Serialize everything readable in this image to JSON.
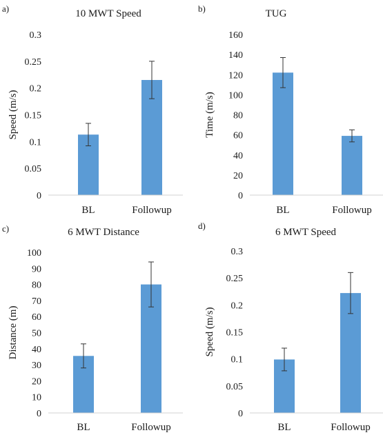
{
  "chart_data": [
    {
      "type": "bar",
      "panel_label": "a)",
      "title": "10 MWT Speed",
      "ylabel": "Speed (m/s)",
      "xlabel": "",
      "categories": [
        "BL",
        "Followup"
      ],
      "values": [
        0.113,
        0.215
      ],
      "errors": [
        0.021,
        0.035
      ],
      "ylim": [
        0,
        0.3
      ],
      "yticks": [
        "0",
        "0.05",
        "0.1",
        "0.15",
        "0.2",
        "0.25",
        "0.3"
      ],
      "tick_values": [
        0,
        0.05,
        0.1,
        0.15,
        0.2,
        0.25,
        0.3
      ],
      "bar_color": "#5b9bd5",
      "grid": false,
      "legend": "none"
    },
    {
      "type": "bar",
      "panel_label": "b)",
      "title": "TUG",
      "ylabel": "Time (m/s)",
      "xlabel": "",
      "categories": [
        "BL",
        "Followup"
      ],
      "values": [
        122,
        59
      ],
      "errors": [
        15,
        6
      ],
      "ylim": [
        0,
        160
      ],
      "yticks": [
        "0",
        "20",
        "40",
        "60",
        "80",
        "100",
        "120",
        "140",
        "160"
      ],
      "tick_values": [
        0,
        20,
        40,
        60,
        80,
        100,
        120,
        140,
        160
      ],
      "bar_color": "#5b9bd5",
      "grid": false,
      "legend": "none"
    },
    {
      "type": "bar",
      "panel_label": "c)",
      "title": "6 MWT Distance",
      "ylabel": "Distance (m)",
      "xlabel": "",
      "categories": [
        "BL",
        "Followup"
      ],
      "values": [
        35.5,
        80
      ],
      "errors": [
        7.5,
        14
      ],
      "ylim": [
        0,
        100
      ],
      "yticks": [
        "0",
        "10",
        "20",
        "30",
        "40",
        "50",
        "60",
        "70",
        "80",
        "90",
        "100"
      ],
      "tick_values": [
        0,
        10,
        20,
        30,
        40,
        50,
        60,
        70,
        80,
        90,
        100
      ],
      "bar_color": "#5b9bd5",
      "grid": false,
      "legend": "none"
    },
    {
      "type": "bar",
      "panel_label": "d)",
      "title": "6 MWT Speed",
      "ylabel": "Speed (m/s)",
      "xlabel": "",
      "categories": [
        "BL",
        "Followup"
      ],
      "values": [
        0.099,
        0.222
      ],
      "errors": [
        0.021,
        0.038
      ],
      "ylim": [
        0,
        0.3
      ],
      "yticks": [
        "0",
        "0.05",
        "0.1",
        "0.15",
        "0.2",
        "0.25",
        "0.3"
      ],
      "tick_values": [
        0,
        0.05,
        0.1,
        0.15,
        0.2,
        0.25,
        0.3
      ],
      "bar_color": "#5b9bd5",
      "grid": false,
      "legend": "none"
    }
  ]
}
